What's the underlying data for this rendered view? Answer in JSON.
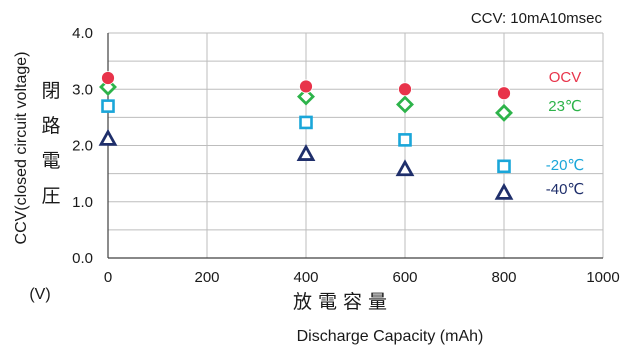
{
  "chart_data": {
    "type": "scatter",
    "title": "CCV: 10mA10msec",
    "ylabel": "CCV(closed circuit voltage)",
    "ylabel_unit": "(V)",
    "ylabel_jp": [
      "閉",
      "路",
      "電",
      "圧"
    ],
    "xlabel": "Discharge Capacity (mAh)",
    "xlabel_jp": "放 電 容 量",
    "xlim": [
      0,
      1000
    ],
    "ylim": [
      0.0,
      4.0
    ],
    "xticks": [
      "0",
      "200",
      "400",
      "600",
      "800",
      "1000"
    ],
    "yticks": [
      "0.0",
      "1.0",
      "2.0",
      "3.0",
      "4.0"
    ],
    "grid": true,
    "x": [
      0,
      400,
      600,
      800
    ],
    "series": [
      {
        "name": "OCV",
        "marker": "circle",
        "color": "#e8334a",
        "values": [
          3.2,
          3.05,
          3.0,
          2.93
        ]
      },
      {
        "name": "23℃",
        "marker": "diamond",
        "color": "#2db34a",
        "values": [
          3.04,
          2.87,
          2.73,
          2.58
        ]
      },
      {
        "name": "-20℃",
        "marker": "square",
        "color": "#1aa6d9",
        "values": [
          2.7,
          2.41,
          2.1,
          1.63
        ]
      },
      {
        "name": "-40℃",
        "marker": "triangle",
        "color": "#1f2f6b",
        "values": [
          2.12,
          1.85,
          1.58,
          1.16
        ]
      }
    ]
  }
}
